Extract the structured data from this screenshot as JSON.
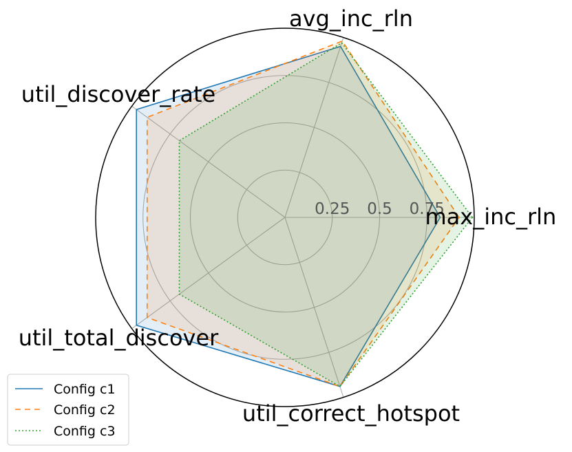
{
  "chart_data": {
    "type": "radar",
    "axes": [
      "max_inc_rln",
      "avg_inc_rln",
      "util_discover_rate",
      "util_total_discover",
      "util_correct_hotspot"
    ],
    "radial_ticks": [
      "0.25",
      "0.5",
      "0.75"
    ],
    "radial_tick_values": [
      0.25,
      0.5,
      0.75
    ],
    "rlim": [
      0,
      1
    ],
    "grid": true,
    "legend_position": "lower-left",
    "series": [
      {
        "name": "Config c1",
        "values": [
          0.82,
          0.95,
          0.97,
          0.97,
          0.94
        ],
        "color": "#1f77b4",
        "line_style": "solid"
      },
      {
        "name": "Config c2",
        "values": [
          0.92,
          0.98,
          0.9,
          0.9,
          0.94
        ],
        "color": "#ff7f0e",
        "line_style": "dashed"
      },
      {
        "name": "Config c3",
        "values": [
          0.99,
          0.97,
          0.69,
          0.69,
          0.94
        ],
        "color": "#2ca02c",
        "line_style": "dotted"
      }
    ]
  }
}
